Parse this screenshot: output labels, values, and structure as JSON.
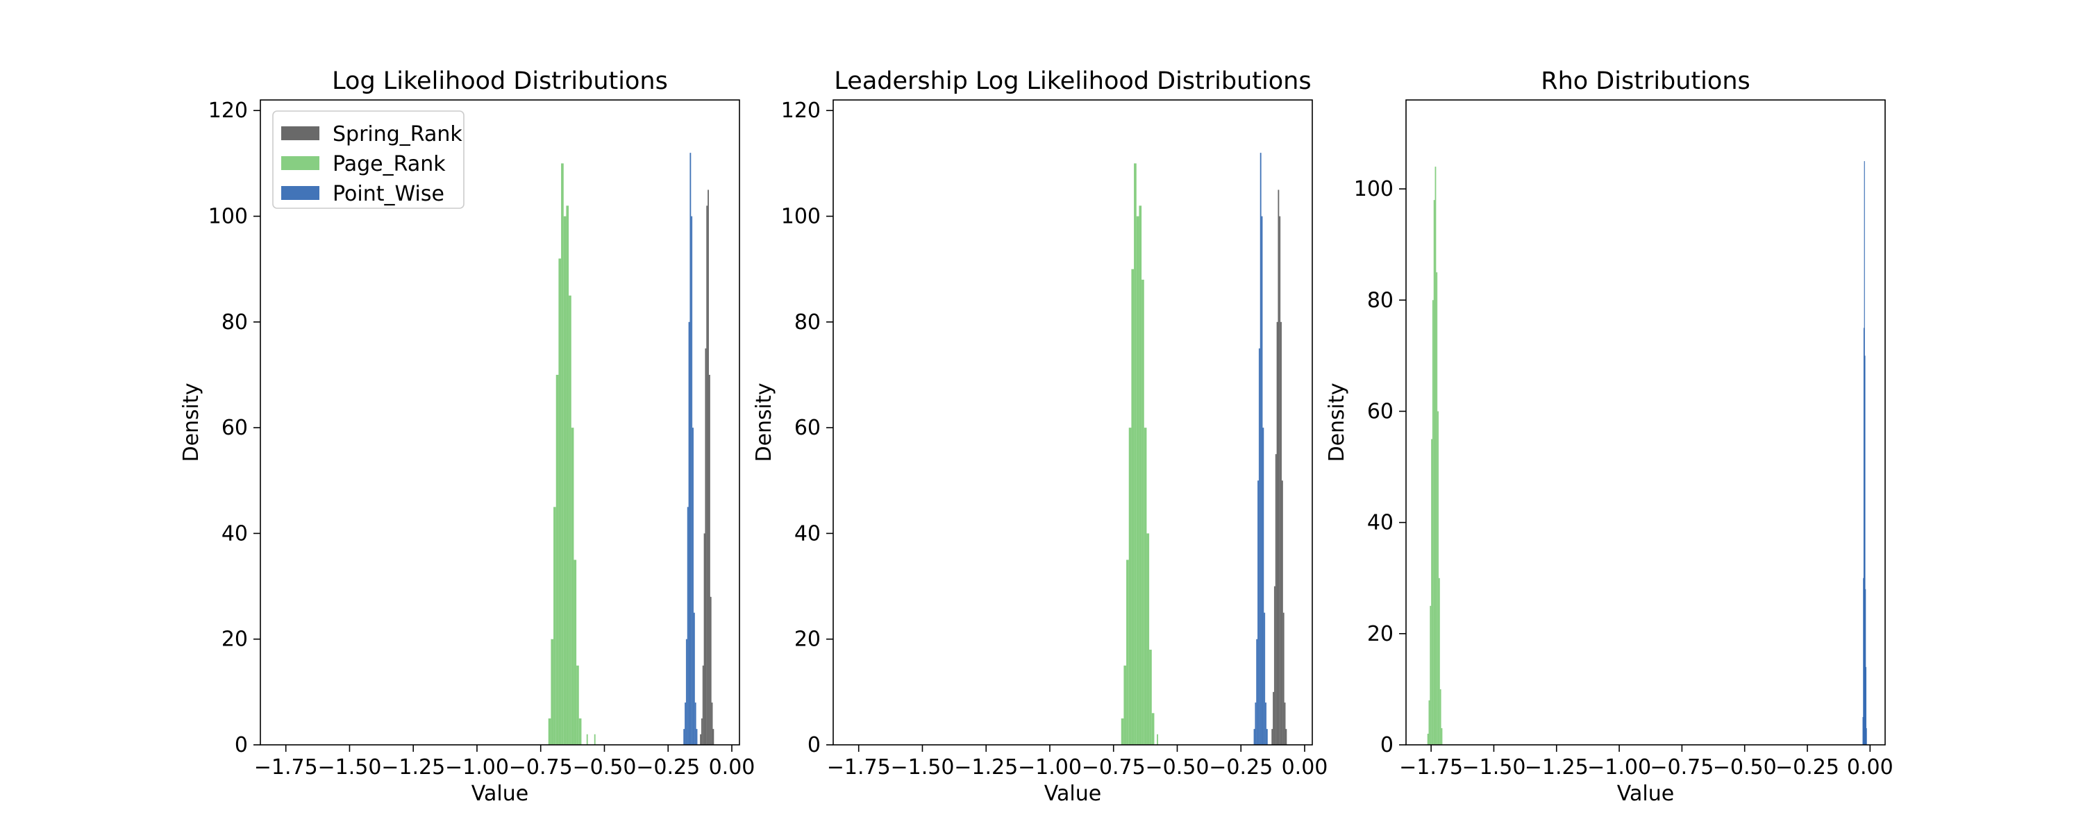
{
  "chart_data": [
    {
      "type": "histogram",
      "title": "Log Likelihood Distributions",
      "xlabel": "Value",
      "ylabel": "Density",
      "xlim": [
        -1.85,
        0.03
      ],
      "ylim": [
        0,
        122
      ],
      "xticks": [
        -1.75,
        -1.5,
        -1.25,
        -1.0,
        -0.75,
        -0.5,
        -0.25,
        0.0
      ],
      "xtick_labels": [
        "−1.75",
        "−1.50",
        "−1.25",
        "−1.00",
        "−0.75",
        "−0.50",
        "−0.25",
        "0.00"
      ],
      "yticks": [
        0,
        20,
        40,
        60,
        80,
        100,
        120
      ],
      "ytick_labels": [
        "0",
        "20",
        "40",
        "60",
        "80",
        "100",
        "120"
      ],
      "legend": {
        "position": "upper-left",
        "entries": [
          "Spring_Rank",
          "Page_Rank",
          "Point_Wise"
        ]
      },
      "grid": false,
      "series": [
        {
          "name": "Spring_Rank",
          "color": "#595959",
          "bins": [
            [
              -0.125,
              -0.12,
              2
            ],
            [
              -0.12,
              -0.115,
              5
            ],
            [
              -0.115,
              -0.11,
              15
            ],
            [
              -0.11,
              -0.105,
              40
            ],
            [
              -0.105,
              -0.1,
              75
            ],
            [
              -0.1,
              -0.095,
              102
            ],
            [
              -0.095,
              -0.09,
              105
            ],
            [
              -0.09,
              -0.085,
              70
            ],
            [
              -0.085,
              -0.08,
              28
            ],
            [
              -0.08,
              -0.075,
              8
            ],
            [
              -0.075,
              -0.07,
              3
            ]
          ]
        },
        {
          "name": "Page_Rank",
          "color": "#7ac974",
          "bins": [
            [
              -0.72,
              -0.71,
              5
            ],
            [
              -0.71,
              -0.7,
              20
            ],
            [
              -0.7,
              -0.69,
              45
            ],
            [
              -0.69,
              -0.68,
              70
            ],
            [
              -0.68,
              -0.67,
              92
            ],
            [
              -0.67,
              -0.66,
              110
            ],
            [
              -0.66,
              -0.65,
              100
            ],
            [
              -0.65,
              -0.64,
              102
            ],
            [
              -0.64,
              -0.63,
              85
            ],
            [
              -0.63,
              -0.62,
              60
            ],
            [
              -0.62,
              -0.61,
              35
            ],
            [
              -0.61,
              -0.6,
              15
            ],
            [
              -0.6,
              -0.59,
              5
            ],
            [
              -0.57,
              -0.565,
              2
            ],
            [
              -0.54,
              -0.535,
              2
            ]
          ]
        },
        {
          "name": "Point_Wise",
          "color": "#2d65b0",
          "bins": [
            [
              -0.19,
              -0.185,
              3
            ],
            [
              -0.185,
              -0.18,
              8
            ],
            [
              -0.18,
              -0.175,
              20
            ],
            [
              -0.175,
              -0.17,
              45
            ],
            [
              -0.17,
              -0.165,
              80
            ],
            [
              -0.165,
              -0.16,
              112
            ],
            [
              -0.16,
              -0.155,
              100
            ],
            [
              -0.155,
              -0.15,
              60
            ],
            [
              -0.15,
              -0.145,
              25
            ],
            [
              -0.145,
              -0.14,
              8
            ],
            [
              -0.14,
              -0.135,
              3
            ]
          ]
        }
      ]
    },
    {
      "type": "histogram",
      "title": "Leadership Log Likelihood Distributions",
      "xlabel": "Value",
      "ylabel": "Density",
      "xlim": [
        -1.85,
        0.03
      ],
      "ylim": [
        0,
        122
      ],
      "xticks": [
        -1.75,
        -1.5,
        -1.25,
        -1.0,
        -0.75,
        -0.5,
        -0.25,
        0.0
      ],
      "xtick_labels": [
        "−1.75",
        "−1.50",
        "−1.25",
        "−1.00",
        "−0.75",
        "−0.50",
        "−0.25",
        "0.00"
      ],
      "yticks": [
        0,
        20,
        40,
        60,
        80,
        100,
        120
      ],
      "ytick_labels": [
        "0",
        "20",
        "40",
        "60",
        "80",
        "100",
        "120"
      ],
      "grid": false,
      "series": [
        {
          "name": "Spring_Rank",
          "color": "#595959",
          "bins": [
            [
              -0.13,
              -0.125,
              3
            ],
            [
              -0.125,
              -0.12,
              10
            ],
            [
              -0.12,
              -0.115,
              30
            ],
            [
              -0.115,
              -0.11,
              55
            ],
            [
              -0.11,
              -0.105,
              80
            ],
            [
              -0.105,
              -0.1,
              105
            ],
            [
              -0.1,
              -0.095,
              100
            ],
            [
              -0.095,
              -0.09,
              80
            ],
            [
              -0.09,
              -0.085,
              50
            ],
            [
              -0.085,
              -0.08,
              25
            ],
            [
              -0.08,
              -0.075,
              8
            ],
            [
              -0.075,
              -0.07,
              3
            ]
          ]
        },
        {
          "name": "Page_Rank",
          "color": "#7ac974",
          "bins": [
            [
              -0.72,
              -0.71,
              5
            ],
            [
              -0.71,
              -0.7,
              15
            ],
            [
              -0.7,
              -0.69,
              35
            ],
            [
              -0.69,
              -0.68,
              60
            ],
            [
              -0.68,
              -0.67,
              90
            ],
            [
              -0.67,
              -0.66,
              110
            ],
            [
              -0.66,
              -0.65,
              100
            ],
            [
              -0.65,
              -0.64,
              102
            ],
            [
              -0.64,
              -0.63,
              88
            ],
            [
              -0.63,
              -0.62,
              60
            ],
            [
              -0.62,
              -0.61,
              40
            ],
            [
              -0.61,
              -0.6,
              18
            ],
            [
              -0.6,
              -0.59,
              6
            ],
            [
              -0.58,
              -0.575,
              2
            ]
          ]
        },
        {
          "name": "Point_Wise",
          "color": "#2d65b0",
          "bins": [
            [
              -0.2,
              -0.195,
              3
            ],
            [
              -0.195,
              -0.19,
              8
            ],
            [
              -0.19,
              -0.185,
              20
            ],
            [
              -0.185,
              -0.18,
              50
            ],
            [
              -0.18,
              -0.175,
              75
            ],
            [
              -0.175,
              -0.17,
              112
            ],
            [
              -0.17,
              -0.165,
              100
            ],
            [
              -0.165,
              -0.16,
              60
            ],
            [
              -0.16,
              -0.155,
              25
            ],
            [
              -0.155,
              -0.15,
              8
            ],
            [
              -0.15,
              -0.145,
              3
            ]
          ]
        }
      ]
    },
    {
      "type": "histogram",
      "title": "Rho Distributions",
      "xlabel": "Value",
      "ylabel": "Density",
      "xlim": [
        -1.85,
        0.06
      ],
      "ylim": [
        0,
        116
      ],
      "xticks": [
        -1.75,
        -1.5,
        -1.25,
        -1.0,
        -0.75,
        -0.5,
        -0.25,
        0.0
      ],
      "xtick_labels": [
        "−1.75",
        "−1.50",
        "−1.25",
        "−1.00",
        "−0.75",
        "−0.50",
        "−0.25",
        "0.00"
      ],
      "yticks": [
        0,
        20,
        40,
        60,
        80,
        100
      ],
      "ytick_labels": [
        "0",
        "20",
        "40",
        "60",
        "80",
        "100"
      ],
      "grid": false,
      "series": [
        {
          "name": "Spring_Rank",
          "color": "#595959",
          "bins": []
        },
        {
          "name": "Page_Rank",
          "color": "#7ac974",
          "bins": [
            [
              -1.765,
              -1.76,
              2
            ],
            [
              -1.76,
              -1.755,
              8
            ],
            [
              -1.755,
              -1.75,
              25
            ],
            [
              -1.75,
              -1.745,
              55
            ],
            [
              -1.745,
              -1.74,
              80
            ],
            [
              -1.74,
              -1.735,
              98
            ],
            [
              -1.735,
              -1.73,
              104
            ],
            [
              -1.73,
              -1.725,
              85
            ],
            [
              -1.725,
              -1.72,
              60
            ],
            [
              -1.72,
              -1.715,
              30
            ],
            [
              -1.715,
              -1.71,
              10
            ],
            [
              -1.71,
              -1.705,
              3
            ]
          ]
        },
        {
          "name": "Point_Wise",
          "color": "#2d65b0",
          "bins": [
            [
              -0.03,
              -0.028,
              5
            ],
            [
              -0.028,
              -0.026,
              30
            ],
            [
              -0.026,
              -0.024,
              75
            ],
            [
              -0.024,
              -0.022,
              105
            ],
            [
              -0.022,
              -0.02,
              70
            ],
            [
              -0.02,
              -0.018,
              28
            ],
            [
              -0.018,
              -0.016,
              14
            ],
            [
              -0.016,
              -0.014,
              3
            ]
          ]
        }
      ]
    }
  ]
}
